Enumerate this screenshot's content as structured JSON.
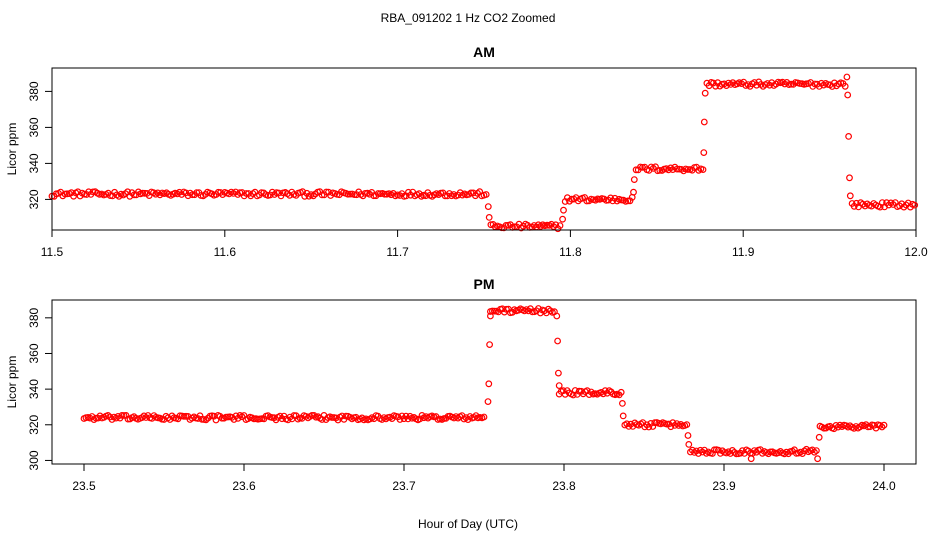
{
  "figure": {
    "title": "RBA_091202  1 Hz CO2 Zoomed",
    "xlabel": "Hour of Day (UTC)"
  },
  "chart_data": [
    {
      "type": "scatter",
      "title": "AM",
      "ylabel": "Licor ppm",
      "xlim": [
        11.5,
        12.0
      ],
      "ylim": [
        303,
        393
      ],
      "xticks": [
        "11.5",
        "11.6",
        "11.7",
        "11.8",
        "11.9",
        "12.0"
      ],
      "yticks": [
        "320",
        "340",
        "360",
        "380"
      ],
      "color": "#ff0000",
      "segments": [
        {
          "x": [
            11.5,
            11.752
          ],
          "y": 323
        },
        {
          "x": [
            11.754,
            11.795
          ],
          "y": 305
        },
        {
          "x": [
            11.797,
            11.836
          ],
          "y": 320
        },
        {
          "x": [
            11.838,
            11.877
          ],
          "y": 337
        },
        {
          "x": [
            11.879,
            11.96
          ],
          "y": 384
        },
        {
          "x": [
            11.963,
            12.0
          ],
          "y": 317
        }
      ],
      "transitions": [
        {
          "x": 11.7525,
          "y": 316
        },
        {
          "x": 11.753,
          "y": 310
        },
        {
          "x": 11.7955,
          "y": 309
        },
        {
          "x": 11.796,
          "y": 314
        },
        {
          "x": 11.8365,
          "y": 324
        },
        {
          "x": 11.837,
          "y": 331
        },
        {
          "x": 11.8772,
          "y": 346
        },
        {
          "x": 11.8775,
          "y": 363
        },
        {
          "x": 11.878,
          "y": 379
        },
        {
          "x": 11.96,
          "y": 388
        },
        {
          "x": 11.9605,
          "y": 378
        },
        {
          "x": 11.961,
          "y": 355
        },
        {
          "x": 11.9615,
          "y": 332
        },
        {
          "x": 11.962,
          "y": 322
        }
      ]
    },
    {
      "type": "scatter",
      "title": "PM",
      "ylabel": "Licor ppm",
      "xlim": [
        23.48,
        24.02
      ],
      "ylim": [
        298,
        390
      ],
      "xticks": [
        "23.5",
        "23.6",
        "23.7",
        "23.8",
        "23.9",
        "24.0"
      ],
      "yticks": [
        "300",
        "320",
        "340",
        "360",
        "380"
      ],
      "color": "#ff0000",
      "segments": [
        {
          "x": [
            23.5,
            23.751
          ],
          "y": 324
        },
        {
          "x": [
            23.754,
            23.795
          ],
          "y": 384
        },
        {
          "x": [
            23.797,
            23.836
          ],
          "y": 338
        },
        {
          "x": [
            23.838,
            23.877
          ],
          "y": 320
        },
        {
          "x": [
            23.879,
            23.958
          ],
          "y": 305
        },
        {
          "x": [
            23.96,
            24.0
          ],
          "y": 319
        }
      ],
      "transitions": [
        {
          "x": 23.7525,
          "y": 333
        },
        {
          "x": 23.753,
          "y": 343
        },
        {
          "x": 23.7535,
          "y": 365
        },
        {
          "x": 23.754,
          "y": 381
        },
        {
          "x": 23.7955,
          "y": 381
        },
        {
          "x": 23.796,
          "y": 367
        },
        {
          "x": 23.7965,
          "y": 349
        },
        {
          "x": 23.797,
          "y": 342
        },
        {
          "x": 23.8365,
          "y": 332
        },
        {
          "x": 23.837,
          "y": 325
        },
        {
          "x": 23.8775,
          "y": 314
        },
        {
          "x": 23.878,
          "y": 309
        },
        {
          "x": 23.917,
          "y": 301
        },
        {
          "x": 23.9585,
          "y": 301
        },
        {
          "x": 23.9595,
          "y": 313
        }
      ]
    }
  ]
}
